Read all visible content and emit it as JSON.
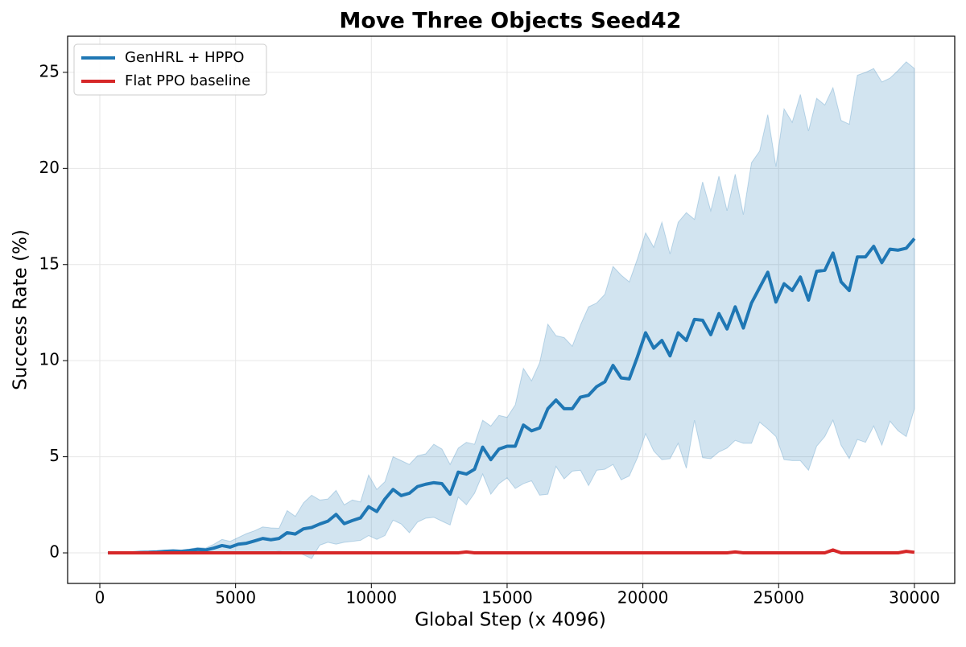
{
  "chart_data": {
    "type": "line",
    "title": "Move Three Objects Seed42",
    "x_label": "Global Step (x 4096)",
    "y_label": "Success Rate (%)",
    "x": [
      300,
      600,
      900,
      1200,
      1500,
      1800,
      2100,
      2400,
      2700,
      3000,
      3300,
      3600,
      3900,
      4200,
      4500,
      4800,
      5100,
      5400,
      5700,
      6000,
      6300,
      6600,
      6900,
      7200,
      7500,
      7800,
      8100,
      8400,
      8700,
      9000,
      9300,
      9600,
      9900,
      10200,
      10500,
      10800,
      11100,
      11400,
      11700,
      12000,
      12300,
      12600,
      12900,
      13200,
      13500,
      13800,
      14100,
      14400,
      14700,
      15000,
      15300,
      15600,
      15900,
      16200,
      16500,
      16800,
      17100,
      17400,
      17700,
      18000,
      18300,
      18600,
      18900,
      19200,
      19500,
      19800,
      20100,
      20400,
      20700,
      21000,
      21300,
      21600,
      21900,
      22200,
      22500,
      22800,
      23100,
      23400,
      23700,
      24000,
      24300,
      24600,
      24900,
      25200,
      25500,
      25800,
      26100,
      26400,
      26700,
      27000,
      27300,
      27600,
      27900,
      28200,
      28500,
      28800,
      29100,
      29400,
      29700,
      30000
    ],
    "series": [
      {
        "name": "GenHRL + HPPO",
        "color": "#1f77b4",
        "values": [
          0,
          0,
          0,
          0,
          0.02,
          0.03,
          0.05,
          0.08,
          0.1,
          0.08,
          0.12,
          0.18,
          0.15,
          0.25,
          0.38,
          0.3,
          0.45,
          0.5,
          0.62,
          0.75,
          0.68,
          0.75,
          1.05,
          0.98,
          1.25,
          1.32,
          1.5,
          1.65,
          2.0,
          1.52,
          1.68,
          1.82,
          2.4,
          2.15,
          2.8,
          3.3,
          2.98,
          3.1,
          3.45,
          3.57,
          3.65,
          3.6,
          3.05,
          4.2,
          4.1,
          4.35,
          5.5,
          4.85,
          5.4,
          5.55,
          5.55,
          6.65,
          6.35,
          6.5,
          7.5,
          7.95,
          7.5,
          7.5,
          8.1,
          8.2,
          8.65,
          8.9,
          9.75,
          9.1,
          9.05,
          10.2,
          11.45,
          10.65,
          11.05,
          10.25,
          11.45,
          11.05,
          12.15,
          12.1,
          11.35,
          12.45,
          11.65,
          12.8,
          11.7,
          13.0,
          13.8,
          14.6,
          13.05,
          14.0,
          13.65,
          14.35,
          13.15,
          14.65,
          14.7,
          15.6,
          14.1,
          13.65,
          15.4,
          15.4,
          15.95,
          15.1,
          15.8,
          15.75,
          15.85,
          16.35
        ],
        "upper": [
          0.02,
          0.03,
          0.04,
          0.05,
          0.07,
          0.08,
          0.1,
          0.14,
          0.16,
          0.14,
          0.2,
          0.28,
          0.25,
          0.45,
          0.7,
          0.6,
          0.8,
          1.0,
          1.15,
          1.35,
          1.3,
          1.28,
          2.2,
          1.9,
          2.6,
          3.0,
          2.75,
          2.8,
          3.25,
          2.5,
          2.75,
          2.65,
          4.05,
          3.3,
          3.7,
          5.0,
          4.8,
          4.6,
          5.05,
          5.15,
          5.65,
          5.4,
          4.6,
          5.45,
          5.75,
          5.65,
          6.9,
          6.6,
          7.15,
          7.05,
          7.7,
          9.6,
          8.95,
          9.9,
          11.9,
          11.3,
          11.2,
          10.75,
          11.85,
          12.8,
          13.0,
          13.45,
          14.9,
          14.45,
          14.1,
          15.3,
          16.65,
          15.9,
          17.2,
          15.55,
          17.2,
          17.7,
          17.35,
          19.3,
          17.8,
          19.6,
          17.8,
          19.7,
          17.6,
          20.3,
          20.9,
          22.8,
          20.1,
          23.1,
          22.4,
          23.85,
          21.95,
          23.65,
          23.3,
          24.2,
          22.5,
          22.3,
          24.85,
          25.0,
          25.2,
          24.5,
          24.7,
          25.1,
          25.55,
          25.2
        ],
        "lower": [
          0,
          0,
          0,
          0,
          0,
          0,
          0,
          0,
          0,
          0,
          0,
          0,
          0,
          0,
          0,
          0,
          0,
          0,
          0,
          0,
          0,
          0.1,
          0,
          0.05,
          -0.1,
          -0.3,
          0.4,
          0.55,
          0.45,
          0.55,
          0.6,
          0.65,
          0.9,
          0.7,
          0.9,
          1.7,
          1.5,
          1.05,
          1.6,
          1.8,
          1.85,
          1.65,
          1.45,
          2.9,
          2.5,
          3.1,
          4.1,
          3.05,
          3.6,
          3.9,
          3.35,
          3.6,
          3.75,
          3.0,
          3.05,
          4.5,
          3.85,
          4.25,
          4.3,
          3.5,
          4.3,
          4.35,
          4.6,
          3.8,
          4.0,
          4.95,
          6.2,
          5.3,
          4.85,
          4.9,
          5.7,
          4.4,
          6.9,
          4.95,
          4.9,
          5.25,
          5.45,
          5.85,
          5.7,
          5.7,
          6.8,
          6.45,
          6.05,
          4.85,
          4.8,
          4.8,
          4.3,
          5.55,
          6.05,
          6.9,
          5.6,
          4.9,
          5.9,
          5.75,
          6.6,
          5.6,
          6.85,
          6.35,
          6.05,
          7.5
        ]
      },
      {
        "name": "Flat PPO baseline",
        "color": "#d62728",
        "values": [
          0,
          0,
          0,
          0,
          0,
          0,
          0,
          0,
          0,
          0,
          0,
          0,
          0,
          0,
          0,
          0,
          0,
          0,
          0,
          0,
          0,
          0,
          0,
          0,
          0,
          0,
          0,
          0,
          0,
          0,
          0,
          0,
          0,
          0,
          0,
          0,
          0,
          0,
          0,
          0,
          0,
          0,
          0,
          0,
          0.05,
          0,
          0,
          0,
          0,
          0,
          0,
          0,
          0,
          0,
          0,
          0,
          0,
          0,
          0,
          0,
          0,
          0,
          0,
          0,
          0,
          0,
          0,
          0,
          0,
          0,
          0,
          0,
          0,
          0,
          0,
          0,
          0,
          0.05,
          0,
          0,
          0,
          0,
          0,
          0,
          0,
          0,
          0,
          0,
          0,
          0.15,
          0,
          0,
          0,
          0,
          0,
          0,
          0,
          0,
          0.08,
          0.03
        ]
      }
    ],
    "xlim": [
      -1186,
      31485
    ],
    "ylim": [
      -1.59,
      26.88
    ],
    "xticks": [
      0,
      5000,
      10000,
      15000,
      20000,
      25000,
      30000
    ],
    "yticks": [
      0,
      5,
      10,
      15,
      20,
      25
    ],
    "grid": true,
    "legend": "upper left"
  }
}
